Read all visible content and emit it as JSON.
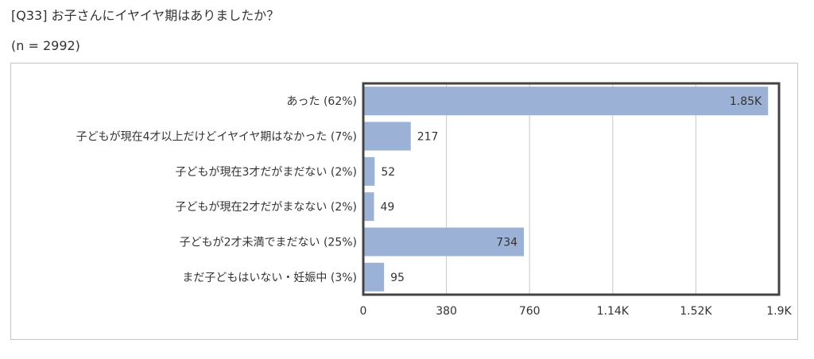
{
  "header": {
    "question": "[Q33] お子さんにイヤイヤ期はありましたか？",
    "sample_size": "(n = 2992)"
  },
  "colors": {
    "bar": "#9bb2d6",
    "grid": "#c8c8c8",
    "frame": "#444444"
  },
  "chart_data": {
    "type": "bar",
    "orientation": "horizontal",
    "title": "",
    "xlabel": "",
    "ylabel": "",
    "categories": [
      "あった (62%)",
      "子どもが現在4才以上だけどイヤイヤ期はなかった (7%)",
      "子どもが現在3才だがまだない (2%)",
      "子どもが現在2才だがまなない (2%)",
      "子どもが2才未満でまだない (25%)",
      "まだ子どもはいない・妊娠中 (3%)"
    ],
    "values": [
      1850,
      217,
      52,
      49,
      734,
      95
    ],
    "value_labels": [
      "1.85K",
      "217",
      "52",
      "49",
      "734",
      "95"
    ],
    "xlim": [
      0,
      1900
    ],
    "x_ticks": [
      0,
      380,
      760,
      1140,
      1520,
      1900
    ],
    "x_tick_labels": [
      "0",
      "380",
      "760",
      "1.14K",
      "1.52K",
      "1.9K"
    ],
    "grid": true,
    "legend": "none"
  }
}
